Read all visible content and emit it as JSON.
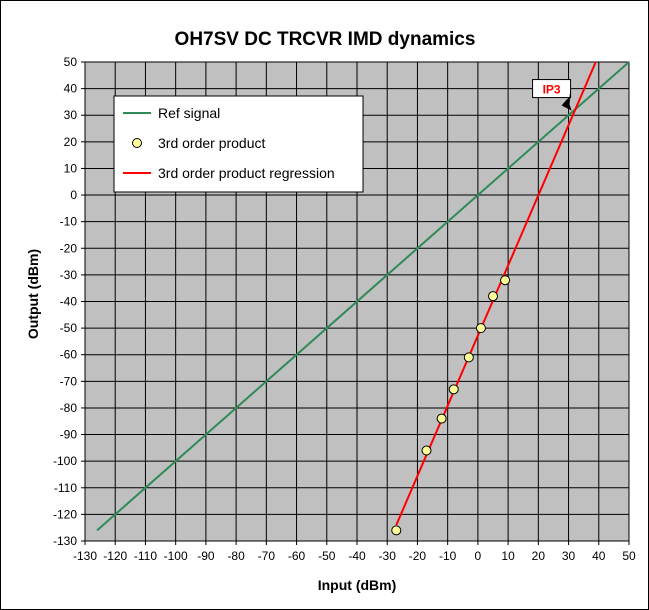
{
  "chart_data": {
    "type": "scatter",
    "title": "OH7SV DC TRCVR IMD dynamics",
    "xlabel": "Input (dBm)",
    "ylabel": "Output (dBm)",
    "xlim": [
      -130,
      50
    ],
    "ylim": [
      -130,
      50
    ],
    "x_ticks": [
      -130,
      -120,
      -110,
      -100,
      -90,
      -80,
      -70,
      -60,
      -50,
      -40,
      -30,
      -20,
      -10,
      0,
      10,
      20,
      30,
      40,
      50
    ],
    "y_ticks": [
      -130,
      -120,
      -110,
      -100,
      -90,
      -80,
      -70,
      -60,
      -50,
      -40,
      -30,
      -20,
      -10,
      0,
      10,
      20,
      30,
      40,
      50
    ],
    "grid": true,
    "legend_position": "top-left",
    "plot_background": "#c0c0c0",
    "series": [
      {
        "name": "Ref signal",
        "kind": "line",
        "color": "#2e8b57",
        "x": [
          -126,
          50
        ],
        "y": [
          -126,
          50
        ]
      },
      {
        "name": "3rd order product",
        "kind": "markers",
        "color": "#ffff99",
        "x": [
          -27,
          -17,
          -12,
          -8,
          -3,
          1,
          5,
          9
        ],
        "y": [
          -126,
          -96,
          -84,
          -73,
          -61,
          -50,
          -38,
          -32
        ]
      },
      {
        "name": "3rd order product regression",
        "kind": "line",
        "color": "#ff0000",
        "x": [
          -27,
          39
        ],
        "y": [
          -124,
          50
        ]
      }
    ],
    "annotations": [
      {
        "text": "IP3",
        "x": 31,
        "y": 31,
        "color": "#ff0000"
      }
    ]
  }
}
